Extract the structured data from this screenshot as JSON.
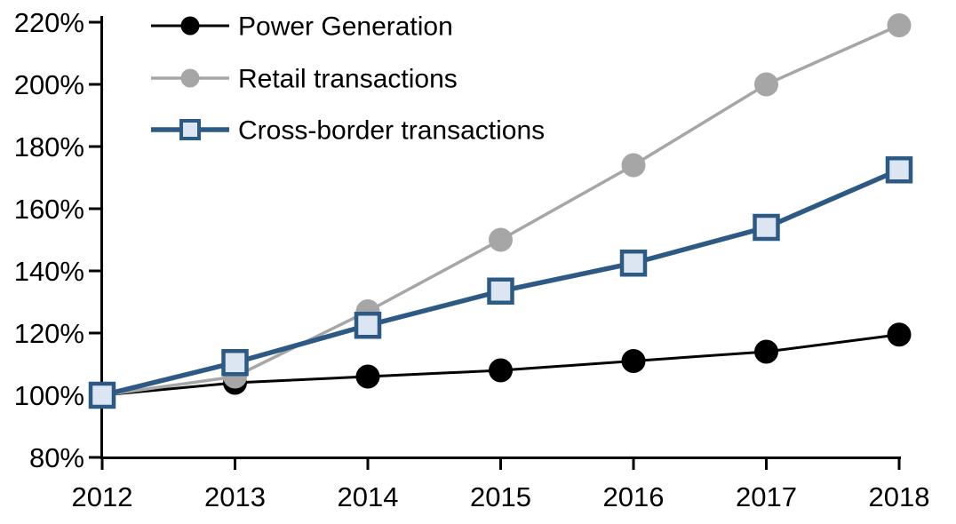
{
  "chart_data": {
    "type": "line",
    "title": "",
    "xlabel": "",
    "ylabel": "",
    "grid": false,
    "legend_position": "top-left-inside",
    "x": [
      2012,
      2013,
      2014,
      2015,
      2016,
      2017,
      2018
    ],
    "xticklabels": [
      "2012",
      "2013",
      "2014",
      "2015",
      "2016",
      "2017",
      "2018"
    ],
    "ylim": [
      80,
      220
    ],
    "ytick_step": 20,
    "yticklabels": [
      "80%",
      "100%",
      "120%",
      "140%",
      "160%",
      "180%",
      "200%",
      "220%"
    ],
    "series": [
      {
        "name": "Power Generation",
        "color": "#000000",
        "marker": "circle",
        "marker_fill": "#000000",
        "values": [
          100,
          104,
          106,
          108,
          111,
          114,
          119.5
        ]
      },
      {
        "name": "Retail transactions",
        "color": "#a6a6a6",
        "marker": "circle",
        "marker_fill": "#a6a6a6",
        "values": [
          100,
          106,
          127,
          150,
          174,
          200,
          219
        ]
      },
      {
        "name": "Cross-border transactions",
        "color": "#2d5a84",
        "marker": "square",
        "marker_fill": "#dce6f2",
        "values": [
          100,
          110.5,
          122.5,
          133.5,
          142.5,
          154,
          172.5
        ]
      }
    ],
    "colors": {
      "axis": "#000000",
      "background": "#ffffff"
    }
  }
}
